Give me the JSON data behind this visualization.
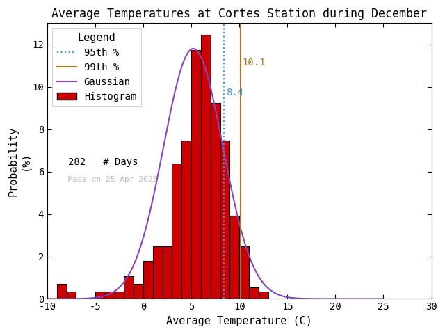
{
  "title": "Average Temperatures at Cortes Station during December",
  "xlabel": "Average Temperature (C)",
  "ylabel": "Probability\n(%)",
  "xlim": [
    -10,
    30
  ],
  "ylim": [
    0,
    13
  ],
  "bin_edges": [
    -9,
    -8,
    -7,
    -6,
    -5,
    -4,
    -3,
    -2,
    -1,
    0,
    1,
    2,
    3,
    4,
    5,
    6,
    7,
    8,
    9,
    10,
    11,
    12,
    13
  ],
  "bin_heights": [
    0.71,
    0.36,
    0.0,
    0.0,
    0.36,
    0.36,
    0.36,
    1.07,
    0.71,
    1.78,
    2.49,
    2.49,
    6.39,
    7.47,
    11.74,
    12.46,
    9.25,
    7.47,
    3.91,
    2.49,
    0.53,
    0.36,
    0.0
  ],
  "gaussian_mean": 5.2,
  "gaussian_std": 3.1,
  "gaussian_scale": 11.8,
  "percentile_95": 8.4,
  "percentile_99": 10.1,
  "n_days": 282,
  "bar_color": "#cc0000",
  "bar_edgecolor": "#000000",
  "gaussian_color": "#8844bb",
  "p95_color": "#4499dd",
  "p99_color": "#aa7722",
  "legend_fontsize": 10,
  "title_fontsize": 12,
  "axis_fontsize": 11,
  "tick_fontsize": 10,
  "watermark": "Made on 25 Apr 2025",
  "watermark_color": "#bbbbbb"
}
